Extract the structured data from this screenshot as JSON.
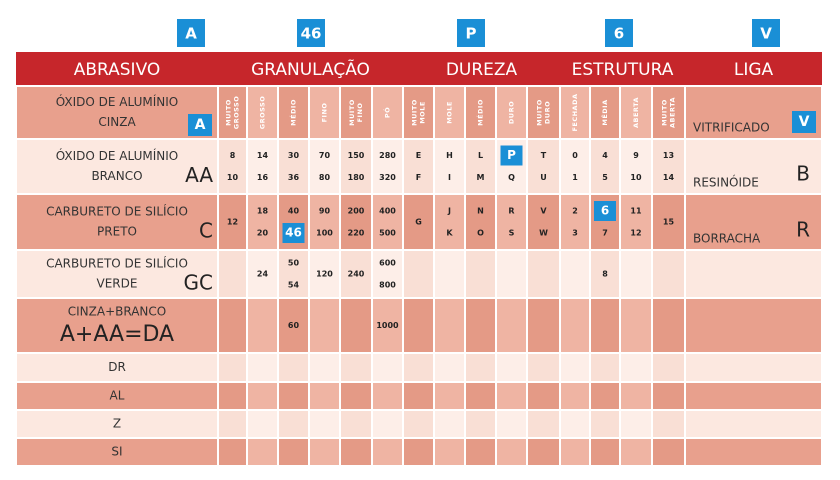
{
  "badges": [
    "A",
    "46",
    "P",
    "6",
    "V"
  ],
  "header": [
    "ABRASIVO",
    "GRANULAÇÃO",
    "DUREZA",
    "ESTRUTURA",
    "LIGA"
  ],
  "subheaders": [
    [
      "MUITO",
      "GROSSO"
    ],
    [
      "GROSSO"
    ],
    [
      "MÉDIO"
    ],
    [
      "FINO"
    ],
    [
      "MUITO",
      "FINO"
    ],
    [
      "PÓ"
    ],
    [
      "MUITO",
      "MOLE"
    ],
    [
      "MOLE"
    ],
    [
      "MÉDIO"
    ],
    [
      "DURO"
    ],
    [
      "MUITO",
      "DURO"
    ],
    [
      "FECHADA"
    ],
    [
      "MÉDIA"
    ],
    [
      "ABERTA"
    ],
    [
      "MUITO",
      "ABERTA"
    ]
  ],
  "abrasives": [
    {
      "name": [
        "ÓXIDO DE ALUMÍNIO",
        "CINZA"
      ],
      "code": "A"
    },
    {
      "name": [
        "ÓXIDO DE ALUMÍNIO",
        "BRANCO"
      ],
      "code": "AA",
      "cells": [
        [
          "8",
          "10"
        ],
        [
          "14",
          "16"
        ],
        [
          "30",
          "36"
        ],
        [
          "70",
          "80"
        ],
        [
          "150",
          "180"
        ],
        [
          "280",
          "320"
        ],
        [
          "E",
          "F"
        ],
        [
          "H",
          "I"
        ],
        [
          "L",
          "M"
        ],
        [
          "P",
          "Q"
        ],
        [
          "T",
          "U"
        ],
        [
          "0",
          "1"
        ],
        [
          "4",
          "5"
        ],
        [
          "9",
          "10"
        ],
        [
          "13",
          "14"
        ]
      ]
    },
    {
      "name": [
        "CARBURETO DE SILÍCIO",
        "PRETO"
      ],
      "code": "C",
      "cells": [
        [
          "12"
        ],
        [
          "18",
          "20"
        ],
        [
          "40",
          "46"
        ],
        [
          "90",
          "100"
        ],
        [
          "200",
          "220"
        ],
        [
          "400",
          "500"
        ],
        [
          "G"
        ],
        [
          "J",
          "K"
        ],
        [
          "N",
          "O"
        ],
        [
          "R",
          "S"
        ],
        [
          "V",
          "W"
        ],
        [
          "2",
          "3"
        ],
        [
          "6",
          "7"
        ],
        [
          "11",
          "12"
        ],
        [
          "15"
        ]
      ]
    },
    {
      "name": [
        "CARBURETO DE SILÍCIO",
        "VERDE"
      ],
      "code": "GC",
      "cells": [
        [],
        [
          "24"
        ],
        [
          "50",
          "54"
        ],
        [
          "120"
        ],
        [
          "240"
        ],
        [
          "600",
          "800"
        ],
        [],
        [],
        [],
        [],
        [],
        [],
        [
          "8"
        ],
        [],
        []
      ]
    },
    {
      "name": [
        "CINZA+BRANCO"
      ],
      "code": "A+AA=DA",
      "cells": [
        [],
        [],
        [
          "60"
        ],
        [],
        [],
        [
          "1000"
        ],
        [],
        [],
        [],
        [],
        [],
        [],
        [],
        [],
        []
      ]
    },
    {
      "name": [
        "DR"
      ]
    },
    {
      "name": [
        "AL"
      ]
    },
    {
      "name": [
        "Z"
      ]
    },
    {
      "name": [
        "SI"
      ]
    }
  ],
  "liga": [
    {
      "name": "VITRIFICADO",
      "code": "V"
    },
    {
      "name": "RESINÓIDE",
      "code": "B"
    },
    {
      "name": "BORRACHA",
      "code": "R"
    }
  ]
}
